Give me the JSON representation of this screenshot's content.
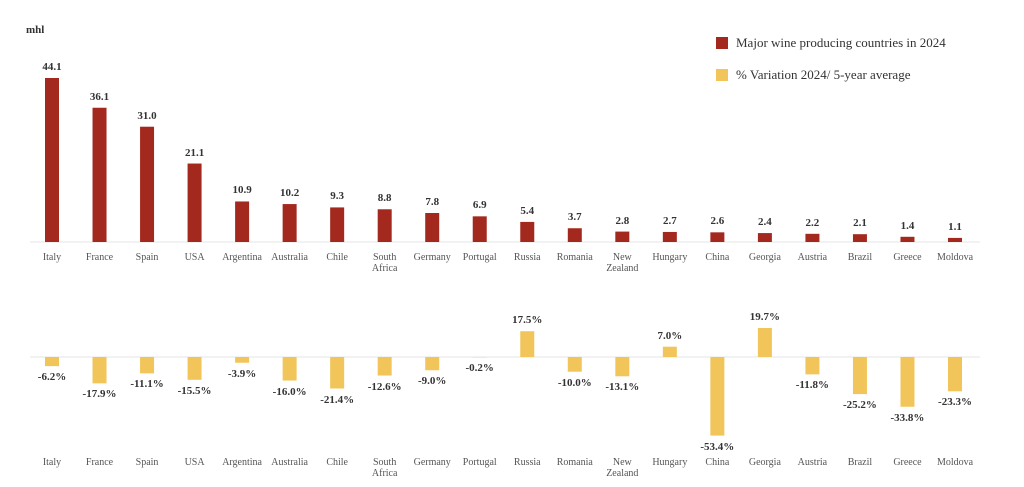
{
  "chart_data": [
    {
      "type": "bar",
      "y_label": "mhl",
      "categories": [
        "Italy",
        "France",
        "Spain",
        "USA",
        "Argentina",
        "Australia",
        "Chile",
        "South Africa",
        "Germany",
        "Portugal",
        "Russia",
        "Romania",
        "New Zealand",
        "Hungary",
        "China",
        "Georgia",
        "Austria",
        "Brazil",
        "Greece",
        "Moldova"
      ],
      "series": [
        {
          "name": "Major wine producing countries in 2024",
          "color": "#a3291f",
          "values": [
            44.1,
            36.1,
            31.0,
            21.1,
            10.9,
            10.2,
            9.3,
            8.8,
            7.8,
            6.9,
            5.4,
            3.7,
            2.8,
            2.7,
            2.6,
            2.4,
            2.2,
            2.1,
            1.4,
            1.1
          ],
          "value_labels": [
            "44.1",
            "36.1",
            "31.0",
            "21.1",
            "10.9",
            "10.2",
            "9.3",
            "8.8",
            "7.8",
            "6.9",
            "5.4",
            "3.7",
            "2.8",
            "2.7",
            "2.6",
            "2.4",
            "2.2",
            "2.1",
            "1.4",
            "1.1"
          ]
        }
      ]
    },
    {
      "type": "bar",
      "categories": [
        "Italy",
        "France",
        "Spain",
        "USA",
        "Argentina",
        "Australia",
        "Chile",
        "South Africa",
        "Germany",
        "Portugal",
        "Russia",
        "Romania",
        "New Zealand",
        "Hungary",
        "China",
        "Georgia",
        "Austria",
        "Brazil",
        "Greece",
        "Moldova"
      ],
      "series": [
        {
          "name": "% Variation 2024/ 5-year average",
          "color": "#f2c55a",
          "values": [
            -6.2,
            -17.9,
            -11.1,
            -15.5,
            -3.9,
            -16.0,
            -21.4,
            -12.6,
            -9.0,
            -0.2,
            17.5,
            -10.0,
            -13.1,
            7.0,
            -53.4,
            19.7,
            -11.8,
            -25.2,
            -33.8,
            -23.3
          ],
          "value_labels": [
            "-6.2%",
            "-17.9%",
            "-11.1%",
            "-15.5%",
            "-3.9%",
            "-16.0%",
            "-21.4%",
            "-12.6%",
            "-9.0%",
            "-0.2%",
            "17.5%",
            "-10.0%",
            "-13.1%",
            "7.0%",
            "-53.4%",
            "19.7%",
            "-11.8%",
            "-25.2%",
            "-33.8%",
            "-23.3%"
          ]
        }
      ]
    }
  ]
}
